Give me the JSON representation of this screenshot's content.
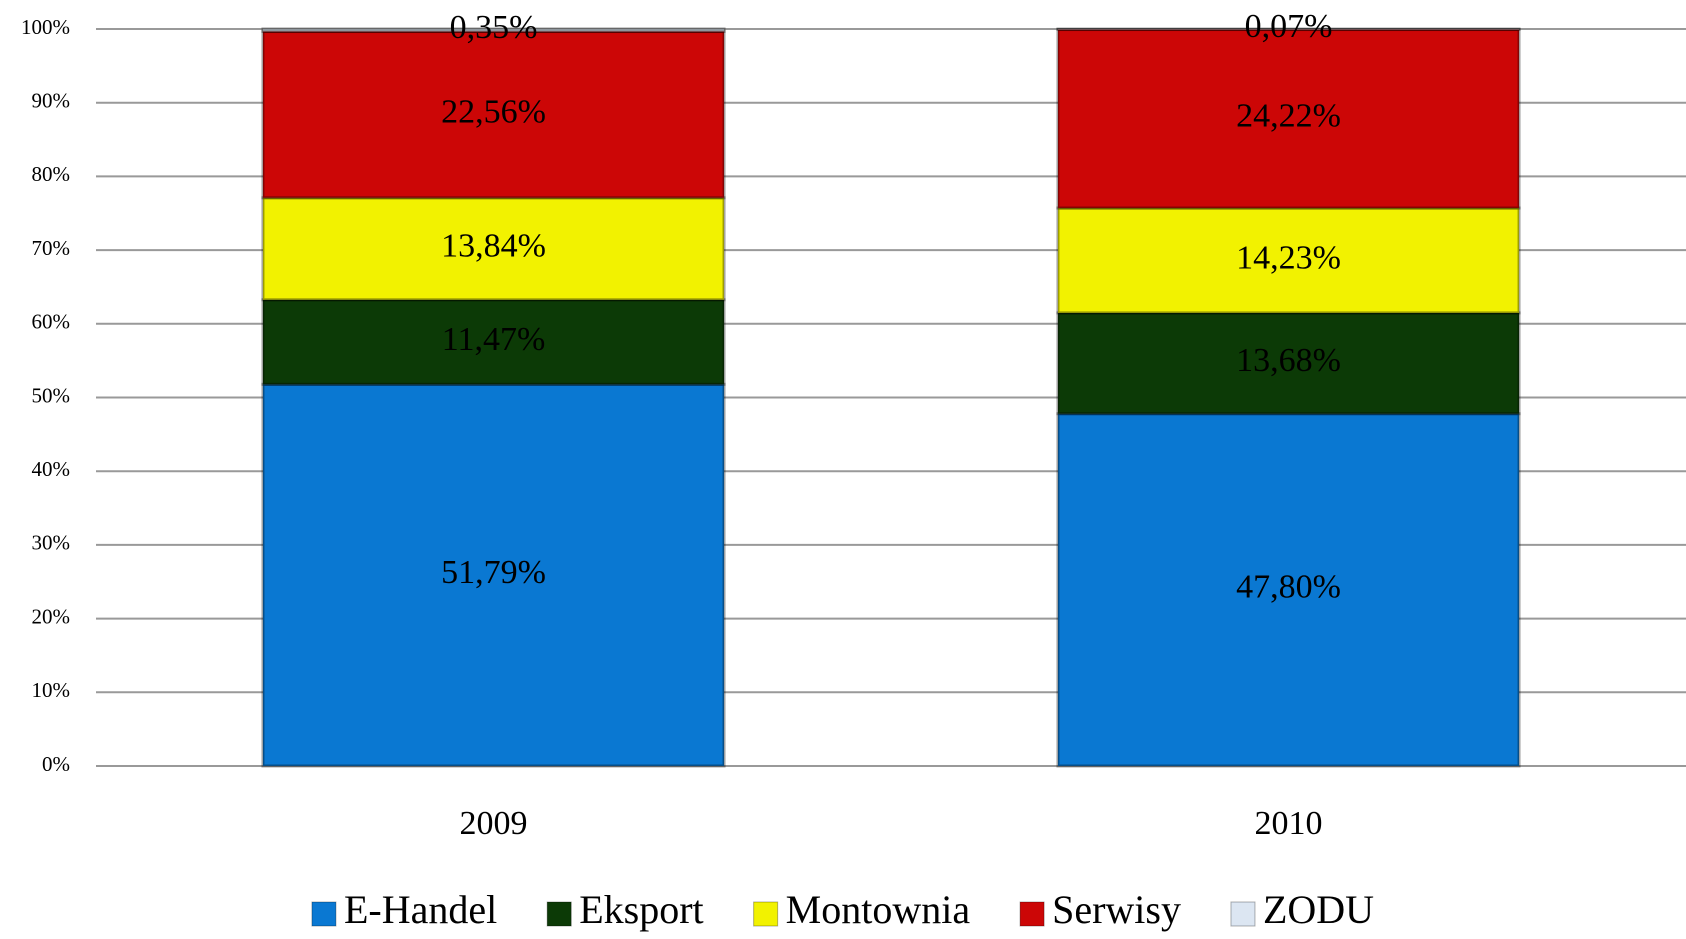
{
  "chart_data": {
    "type": "stacked_bar",
    "categories": [
      "2009",
      "2010"
    ],
    "series": [
      {
        "name": "E-Handel",
        "color": "#0a78d2",
        "values": [
          51.79,
          47.8
        ],
        "value_labels": [
          "51,79%",
          "47,80%"
        ]
      },
      {
        "name": "Eksport",
        "color": "#0c3a06",
        "values": [
          11.47,
          13.68
        ],
        "value_labels": [
          "11,47%",
          "13,68%"
        ]
      },
      {
        "name": "Montownia",
        "color": "#f2f200",
        "values": [
          13.84,
          14.23
        ],
        "value_labels": [
          "13,84%",
          "14,23%"
        ]
      },
      {
        "name": "Serwisy",
        "color": "#cc0606",
        "values": [
          22.56,
          24.22
        ],
        "value_labels": [
          "22,56%",
          "24,22%"
        ]
      },
      {
        "name": "ZODU",
        "color": "#dce6f2",
        "values": [
          0.35,
          0.07
        ],
        "value_labels": [
          "0,35%",
          "0,07%"
        ]
      }
    ],
    "ylim": [
      0,
      100
    ],
    "yticks": [
      {
        "value": 0,
        "label": "0%"
      },
      {
        "value": 10,
        "label": "10%"
      },
      {
        "value": 20,
        "label": "20%"
      },
      {
        "value": 30,
        "label": "30%"
      },
      {
        "value": 40,
        "label": "40%"
      },
      {
        "value": 50,
        "label": "50%"
      },
      {
        "value": 60,
        "label": "60%"
      },
      {
        "value": 70,
        "label": "70%"
      },
      {
        "value": 80,
        "label": "80%"
      },
      {
        "value": 90,
        "label": "90%"
      },
      {
        "value": 100,
        "label": "100%"
      }
    ],
    "grid": true,
    "legend": "bottom"
  }
}
